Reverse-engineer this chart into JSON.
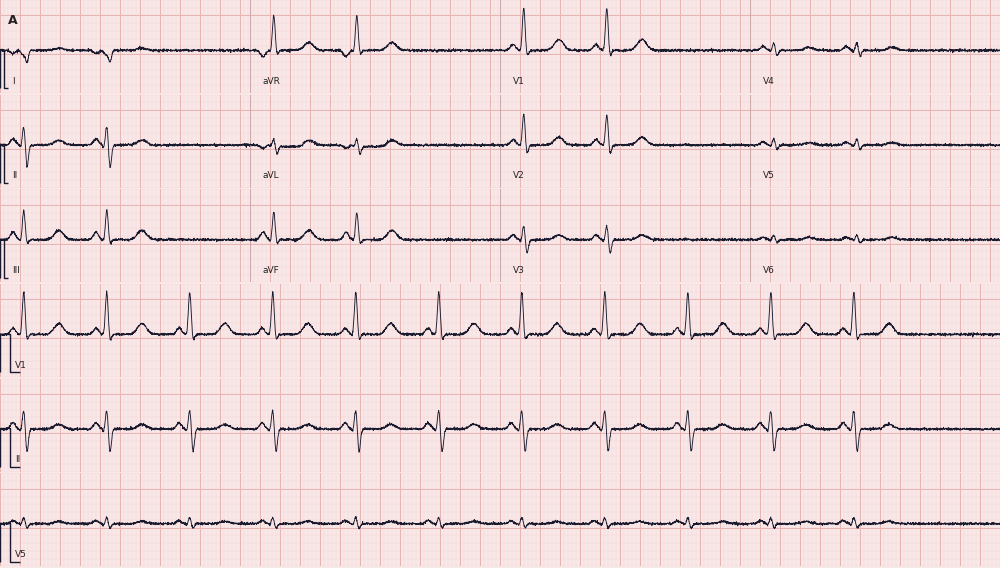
{
  "background_color": "#f9e8e8",
  "grid_major_color": "#e8b4b4",
  "grid_minor_color": "#f2d0d0",
  "line_color": "#1a1a2e",
  "label_color": "#222222",
  "fig_width": 10.0,
  "fig_height": 5.68,
  "title": "A",
  "heart_rate_bpm": 72,
  "rr_interval": 0.83,
  "noise_level": 0.008,
  "top_row_leads": [
    [
      "I",
      "aVR",
      "V1",
      "V4"
    ],
    [
      "II",
      "aVL",
      "V2",
      "V5"
    ],
    [
      "III",
      "aVF",
      "V3",
      "V6"
    ]
  ],
  "bottom_row_leads": [
    "V1",
    "II",
    "V5"
  ],
  "lead_params": {
    "I": {
      "r_amp": 0.06,
      "p_amp": 0.04,
      "t_amp": 0.03,
      "invert_p": true,
      "s_amp": 0.15,
      "q_amp": 0.03,
      "neg_r": true,
      "st_level": 0.0
    },
    "II": {
      "r_amp": 0.25,
      "p_amp": 0.08,
      "t_amp": 0.06,
      "invert_p": false,
      "s_amp": 0.3,
      "q_amp": 0.04,
      "neg_r": false,
      "st_level": 0.0
    },
    "III": {
      "r_amp": 0.38,
      "p_amp": 0.1,
      "t_amp": 0.12,
      "invert_p": false,
      "s_amp": 0.06,
      "q_amp": 0.03,
      "neg_r": false,
      "st_level": 0.0
    },
    "aVR": {
      "r_amp": 0.45,
      "p_amp": 0.08,
      "t_amp": 0.1,
      "invert_p": true,
      "s_amp": 0.06,
      "q_amp": 0.03,
      "neg_r": false,
      "st_level": 0.0
    },
    "aVL": {
      "r_amp": 0.08,
      "p_amp": 0.04,
      "t_amp": 0.06,
      "invert_p": true,
      "s_amp": 0.12,
      "q_amp": 0.02,
      "neg_r": false,
      "st_level": -0.02
    },
    "aVF": {
      "r_amp": 0.35,
      "p_amp": 0.1,
      "t_amp": 0.12,
      "invert_p": false,
      "s_amp": 0.06,
      "q_amp": 0.03,
      "neg_r": false,
      "st_level": 0.0
    },
    "V1": {
      "r_amp": 0.55,
      "p_amp": 0.08,
      "t_amp": 0.14,
      "invert_p": false,
      "s_amp": 0.08,
      "q_amp": 0.02,
      "neg_r": false,
      "st_level": 0.0
    },
    "V2": {
      "r_amp": 0.4,
      "p_amp": 0.07,
      "t_amp": 0.1,
      "invert_p": false,
      "s_amp": 0.12,
      "q_amp": 0.02,
      "neg_r": false,
      "st_level": 0.0
    },
    "V3": {
      "r_amp": 0.18,
      "p_amp": 0.06,
      "t_amp": 0.06,
      "invert_p": false,
      "s_amp": 0.18,
      "q_amp": 0.03,
      "neg_r": false,
      "st_level": 0.0
    },
    "V4": {
      "r_amp": 0.1,
      "p_amp": 0.05,
      "t_amp": 0.04,
      "invert_p": false,
      "s_amp": 0.08,
      "q_amp": 0.02,
      "neg_r": false,
      "st_level": 0.0
    },
    "V5": {
      "r_amp": 0.08,
      "p_amp": 0.04,
      "t_amp": 0.03,
      "invert_p": false,
      "s_amp": 0.06,
      "q_amp": 0.02,
      "neg_r": false,
      "st_level": 0.0
    },
    "V6": {
      "r_amp": 0.06,
      "p_amp": 0.03,
      "t_amp": 0.03,
      "invert_p": false,
      "s_amp": 0.04,
      "q_amp": 0.01,
      "neg_r": false,
      "st_level": 0.0
    }
  }
}
